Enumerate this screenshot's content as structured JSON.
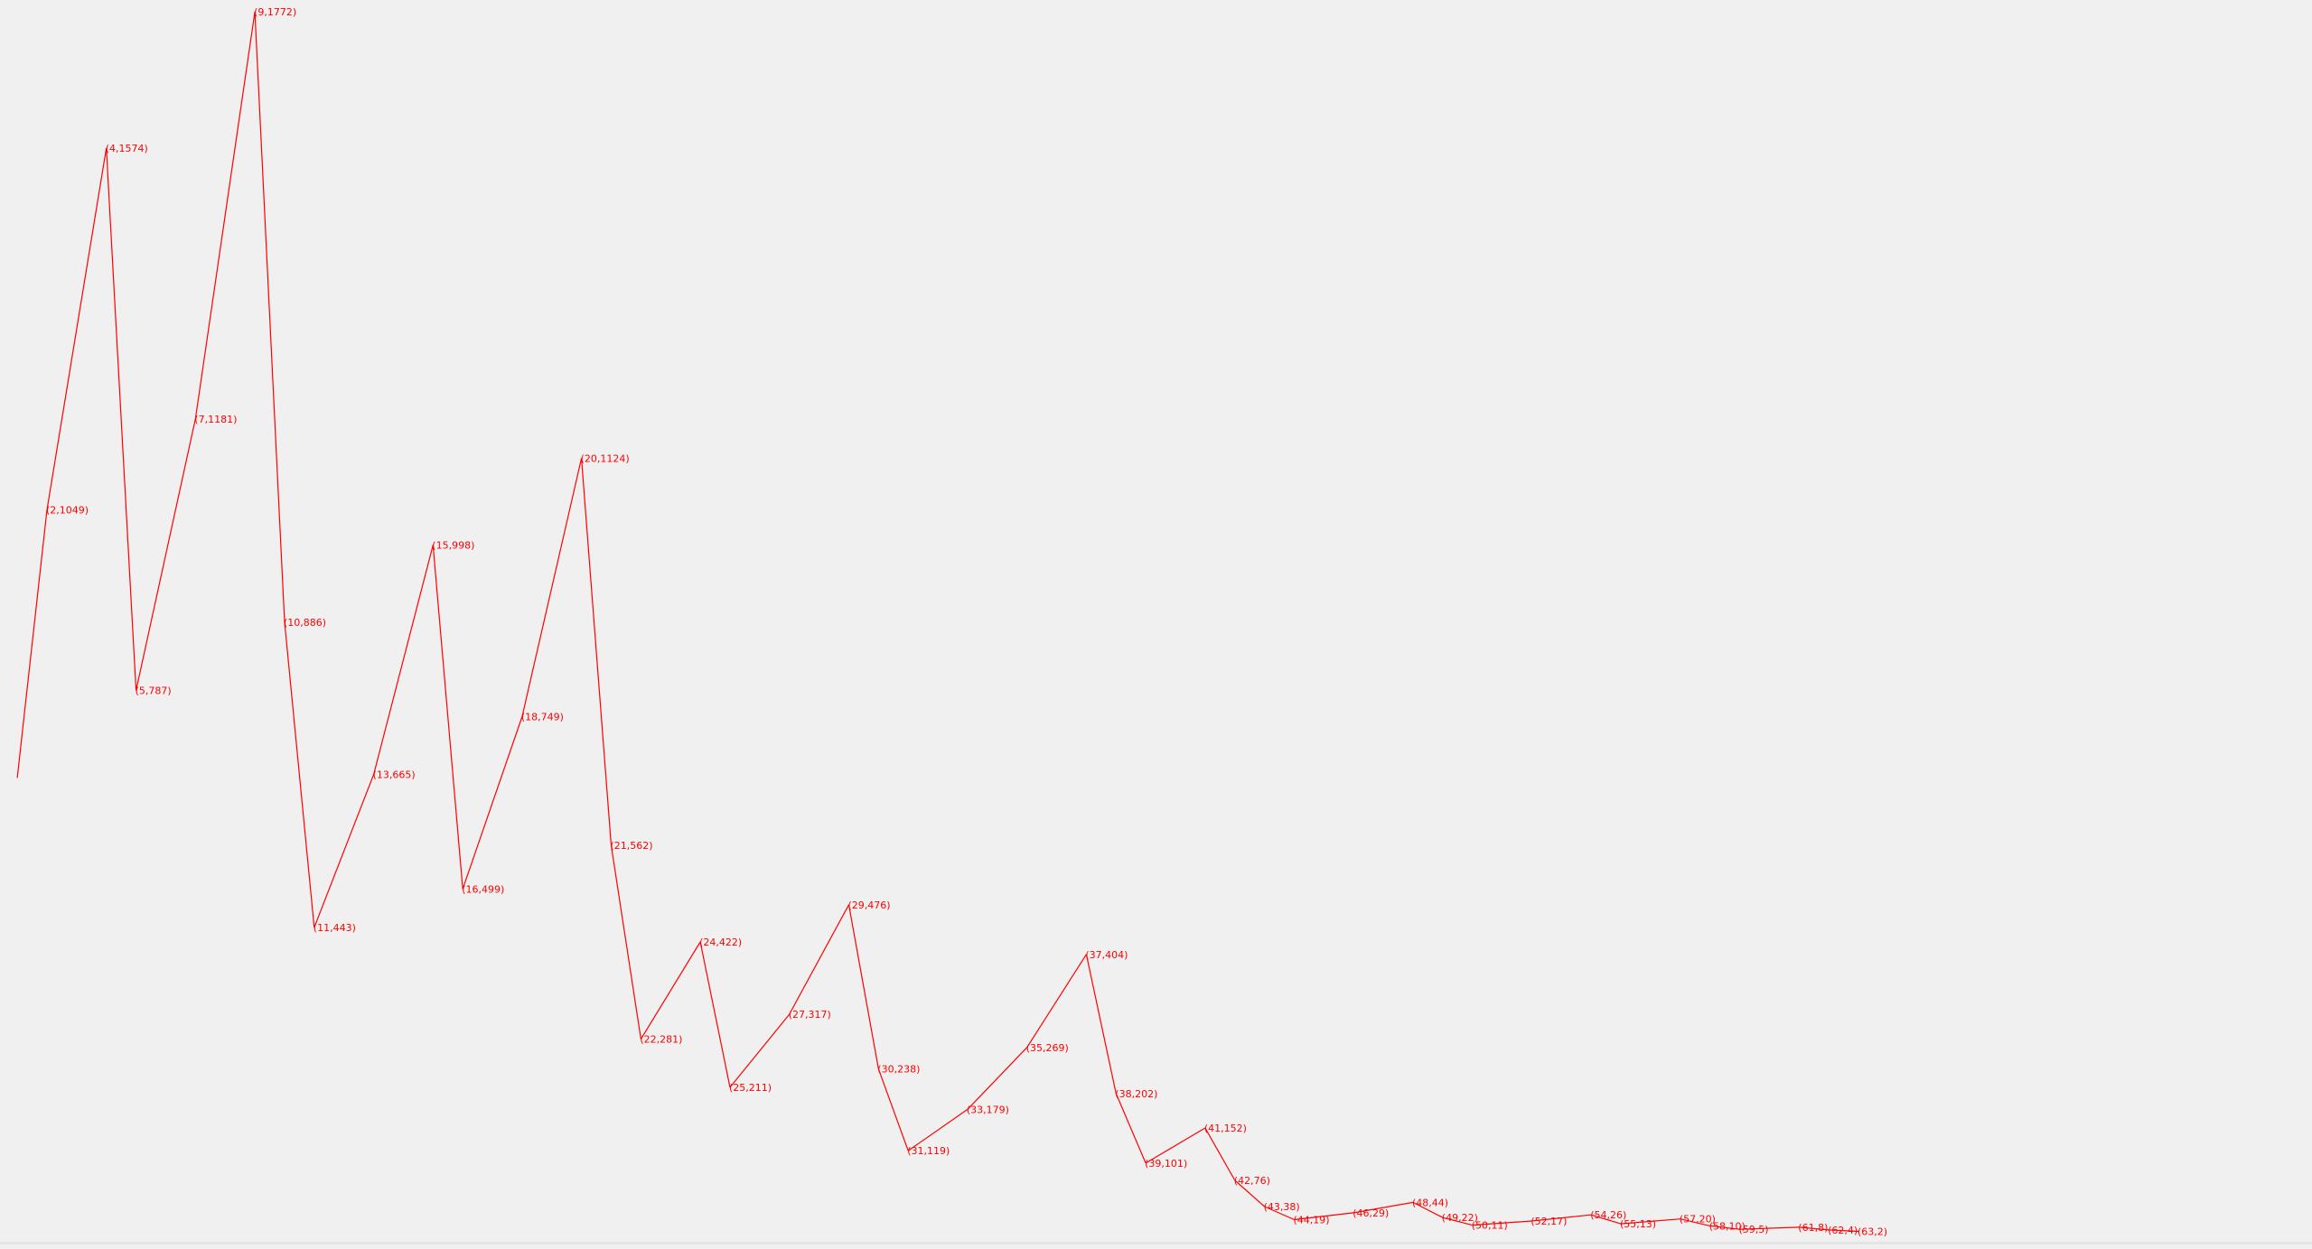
{
  "colors": {
    "background": "#f0f0f0",
    "series": "#ff0000",
    "label": "#ff0000"
  },
  "chart_data": {
    "type": "line",
    "title": "",
    "xlabel": "",
    "ylabel": "",
    "grid": false,
    "legend": "none",
    "xlim": [
      0,
      63
    ],
    "ylim": [
      0,
      1772
    ],
    "start_point": {
      "x": 1,
      "y": 660
    },
    "points": [
      {
        "x": 2,
        "y": 1049,
        "label": "(2,1049)"
      },
      {
        "x": 4,
        "y": 1574,
        "label": "(4,1574)"
      },
      {
        "x": 5,
        "y": 787,
        "label": "(5,787)"
      },
      {
        "x": 7,
        "y": 1181,
        "label": "(7,1181)"
      },
      {
        "x": 9,
        "y": 1772,
        "label": "(9,1772)"
      },
      {
        "x": 10,
        "y": 886,
        "label": "(10,886)"
      },
      {
        "x": 11,
        "y": 443,
        "label": "(11,443)"
      },
      {
        "x": 13,
        "y": 665,
        "label": "(13,665)"
      },
      {
        "x": 15,
        "y": 998,
        "label": "(15,998)"
      },
      {
        "x": 16,
        "y": 499,
        "label": "(16,499)"
      },
      {
        "x": 18,
        "y": 749,
        "label": "(18,749)"
      },
      {
        "x": 20,
        "y": 1124,
        "label": "(20,1124)"
      },
      {
        "x": 21,
        "y": 562,
        "label": "(21,562)"
      },
      {
        "x": 22,
        "y": 281,
        "label": "(22,281)"
      },
      {
        "x": 24,
        "y": 422,
        "label": "(24,422)"
      },
      {
        "x": 25,
        "y": 211,
        "label": "(25,211)"
      },
      {
        "x": 27,
        "y": 317,
        "label": "(27,317)"
      },
      {
        "x": 29,
        "y": 476,
        "label": "(29,476)"
      },
      {
        "x": 30,
        "y": 238,
        "label": "(30,238)"
      },
      {
        "x": 31,
        "y": 119,
        "label": "(31,119)"
      },
      {
        "x": 33,
        "y": 179,
        "label": "(33,179)"
      },
      {
        "x": 35,
        "y": 269,
        "label": "(35,269)"
      },
      {
        "x": 37,
        "y": 404,
        "label": "(37,404)"
      },
      {
        "x": 38,
        "y": 202,
        "label": "(38,202)"
      },
      {
        "x": 39,
        "y": 101,
        "label": "(39,101)"
      },
      {
        "x": 41,
        "y": 152,
        "label": "(41,152)"
      },
      {
        "x": 42,
        "y": 76,
        "label": "(42,76)"
      },
      {
        "x": 43,
        "y": 38,
        "label": "(43,38)"
      },
      {
        "x": 44,
        "y": 19,
        "label": "(44,19)"
      },
      {
        "x": 46,
        "y": 29,
        "label": "(46,29)"
      },
      {
        "x": 48,
        "y": 44,
        "label": "(48,44)"
      },
      {
        "x": 49,
        "y": 22,
        "label": "(49,22)"
      },
      {
        "x": 50,
        "y": 11,
        "label": "(50,11)"
      },
      {
        "x": 52,
        "y": 17,
        "label": "(52,17)"
      },
      {
        "x": 54,
        "y": 26,
        "label": "(54,26)"
      },
      {
        "x": 55,
        "y": 13,
        "label": "(55,13)"
      },
      {
        "x": 57,
        "y": 20,
        "label": "(57,20)"
      },
      {
        "x": 58,
        "y": 10,
        "label": "(58,10)"
      },
      {
        "x": 59,
        "y": 5,
        "label": "(59,5)"
      },
      {
        "x": 61,
        "y": 8,
        "label": "(61,8)"
      },
      {
        "x": 62,
        "y": 4,
        "label": "(62,4)"
      },
      {
        "x": 63,
        "y": 2,
        "label": "(63,2)"
      }
    ]
  }
}
